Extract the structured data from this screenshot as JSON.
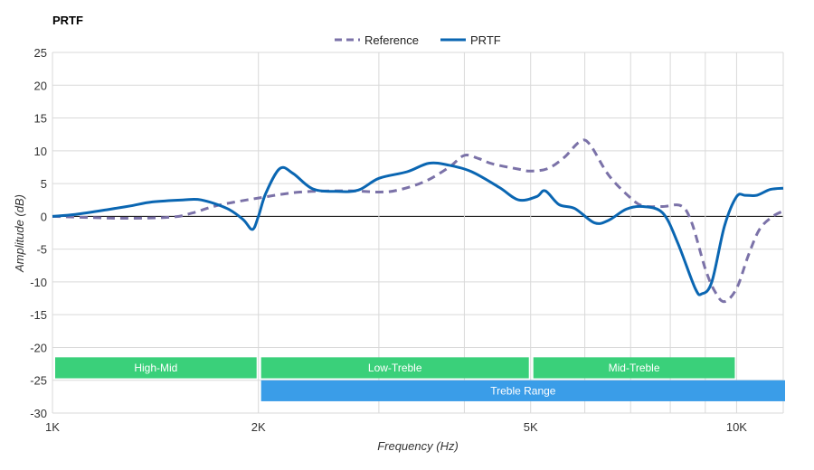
{
  "chart_data": {
    "type": "line",
    "title": "PRTF",
    "xlabel": "Frequency (Hz)",
    "ylabel": "Amplitude (dB)",
    "x_scale": "log",
    "xlim": [
      1000,
      11700
    ],
    "ylim": [
      -30,
      25
    ],
    "x_ticks": [
      {
        "value": 1000,
        "label": "1K"
      },
      {
        "value": 2000,
        "label": "2K"
      },
      {
        "value": 5000,
        "label": "5K"
      },
      {
        "value": 10000,
        "label": "10K"
      }
    ],
    "x_minor_gridlines": [
      3000,
      4000,
      6000,
      7000,
      8000,
      9000
    ],
    "y_ticks": [
      25,
      20,
      15,
      10,
      5,
      0,
      -5,
      -10,
      -15,
      -20,
      -25,
      -30
    ],
    "grid": true,
    "legend_position": "top-center",
    "series": [
      {
        "name": "Reference",
        "style": "dashed",
        "color": "#7b72a8",
        "points": [
          [
            1000,
            0
          ],
          [
            1150,
            -0.2
          ],
          [
            1300,
            -0.3
          ],
          [
            1500,
            -0.1
          ],
          [
            1600,
            0.5
          ],
          [
            1750,
            1.7
          ],
          [
            2000,
            2.8
          ],
          [
            2300,
            3.7
          ],
          [
            2700,
            3.9
          ],
          [
            3000,
            3.7
          ],
          [
            3200,
            4.0
          ],
          [
            3500,
            5.3
          ],
          [
            3800,
            7.5
          ],
          [
            4000,
            9.3
          ],
          [
            4200,
            8.8
          ],
          [
            4400,
            8.0
          ],
          [
            4800,
            7.2
          ],
          [
            5000,
            6.9
          ],
          [
            5300,
            7.3
          ],
          [
            5600,
            9.0
          ],
          [
            5900,
            11.4
          ],
          [
            6100,
            11.0
          ],
          [
            6500,
            6.3
          ],
          [
            7000,
            2.8
          ],
          [
            7300,
            1.6
          ],
          [
            7800,
            1.5
          ],
          [
            8300,
            1.6
          ],
          [
            8600,
            -1.0
          ],
          [
            9000,
            -8.0
          ],
          [
            9300,
            -11.5
          ],
          [
            9600,
            -13.0
          ],
          [
            10000,
            -11.0
          ],
          [
            10400,
            -6.0
          ],
          [
            10800,
            -2.0
          ],
          [
            11300,
            0.0
          ],
          [
            11700,
            0.8
          ]
        ]
      },
      {
        "name": "PRTF",
        "style": "solid",
        "color": "#0a66b2",
        "points": [
          [
            1000,
            0
          ],
          [
            1080,
            0.3
          ],
          [
            1200,
            1.0
          ],
          [
            1300,
            1.6
          ],
          [
            1400,
            2.2
          ],
          [
            1550,
            2.5
          ],
          [
            1650,
            2.5
          ],
          [
            1800,
            1.2
          ],
          [
            1900,
            -0.5
          ],
          [
            1960,
            -2.0
          ],
          [
            2000,
            0.0
          ],
          [
            2050,
            3.5
          ],
          [
            2150,
            7.3
          ],
          [
            2250,
            6.5
          ],
          [
            2400,
            4.2
          ],
          [
            2600,
            3.8
          ],
          [
            2800,
            4.0
          ],
          [
            3000,
            5.8
          ],
          [
            3300,
            6.8
          ],
          [
            3550,
            8.1
          ],
          [
            3800,
            7.8
          ],
          [
            4100,
            6.8
          ],
          [
            4500,
            4.4
          ],
          [
            4800,
            2.5
          ],
          [
            5100,
            3.0
          ],
          [
            5250,
            3.9
          ],
          [
            5500,
            1.8
          ],
          [
            5800,
            1.2
          ],
          [
            6200,
            -1.0
          ],
          [
            6500,
            -0.6
          ],
          [
            6900,
            1.1
          ],
          [
            7300,
            1.5
          ],
          [
            7800,
            0.5
          ],
          [
            8200,
            -4.0
          ],
          [
            8700,
            -11.0
          ],
          [
            8900,
            -11.8
          ],
          [
            9200,
            -10.0
          ],
          [
            9600,
            -1.5
          ],
          [
            10000,
            3.0
          ],
          [
            10300,
            3.2
          ],
          [
            10700,
            3.2
          ],
          [
            11200,
            4.1
          ],
          [
            11700,
            4.3
          ]
        ]
      }
    ],
    "bands": [
      {
        "label": "High-Mid",
        "x_start": 1000,
        "x_end": 2000,
        "y_top": -21.5,
        "y_bottom": -24.7,
        "color": "#3ad07a"
      },
      {
        "label": "Low-Treble",
        "x_start": 2000,
        "x_end": 5000,
        "y_top": -21.5,
        "y_bottom": -24.7,
        "color": "#3ad07a"
      },
      {
        "label": "Mid-Treble",
        "x_start": 5000,
        "x_end": 10000,
        "y_top": -21.5,
        "y_bottom": -24.7,
        "color": "#3ad07a"
      },
      {
        "label": "Treble Range",
        "x_start": 2000,
        "x_end": 11700,
        "y_top": -25.0,
        "y_bottom": -28.2,
        "color": "#3a9de8"
      }
    ]
  }
}
